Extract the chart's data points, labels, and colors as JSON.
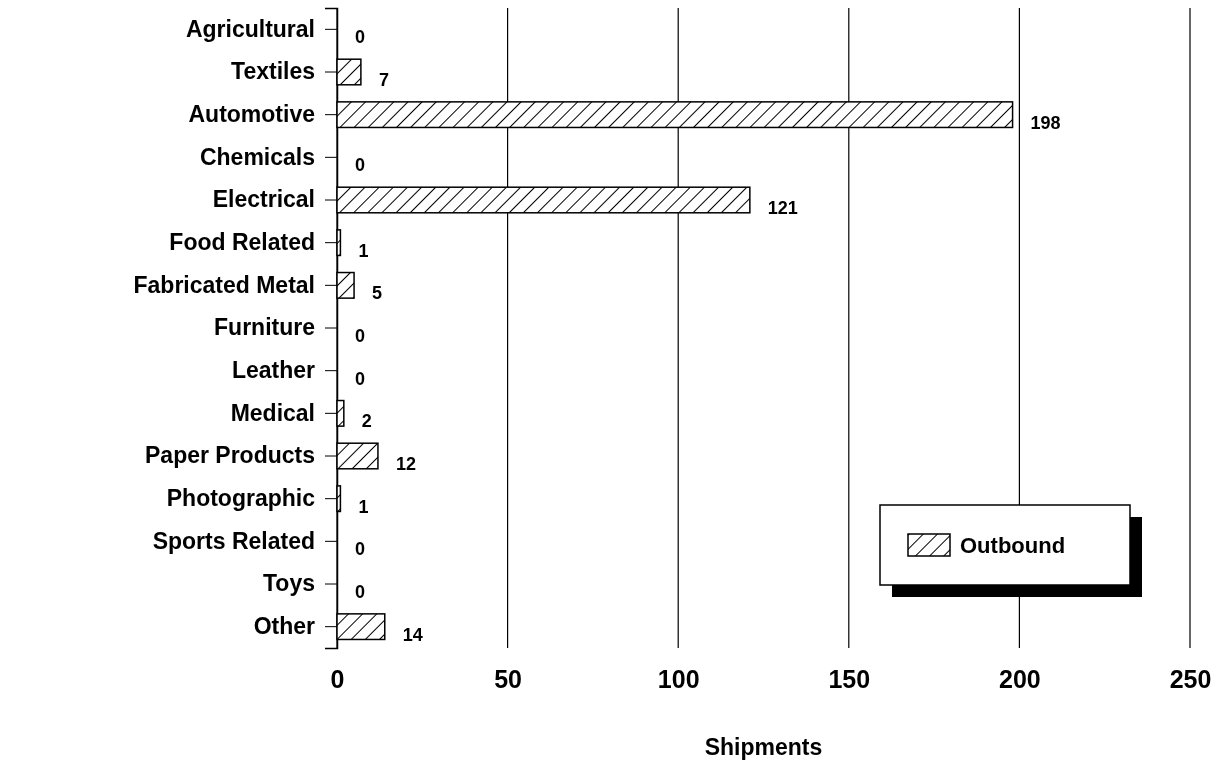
{
  "chart_data": {
    "type": "bar",
    "orientation": "horizontal",
    "xlabel": "Shipments",
    "categories": [
      "Agricultural",
      "Textiles",
      "Automotive",
      "Chemicals",
      "Electrical",
      "Food Related",
      "Fabricated Metal",
      "Furniture",
      "Leather",
      "Medical",
      "Paper Products",
      "Photographic",
      "Sports Related",
      "Toys",
      "Other"
    ],
    "series": [
      {
        "name": "Outbound",
        "color": "#000000",
        "values": [
          0,
          7,
          198,
          0,
          121,
          1,
          5,
          0,
          0,
          2,
          12,
          1,
          0,
          0,
          14
        ]
      }
    ],
    "xlim": [
      0,
      250
    ],
    "xticks": [
      0,
      50,
      100,
      150,
      200,
      250
    ],
    "grid": "x",
    "legend": "bottom right",
    "data_labels": true
  }
}
